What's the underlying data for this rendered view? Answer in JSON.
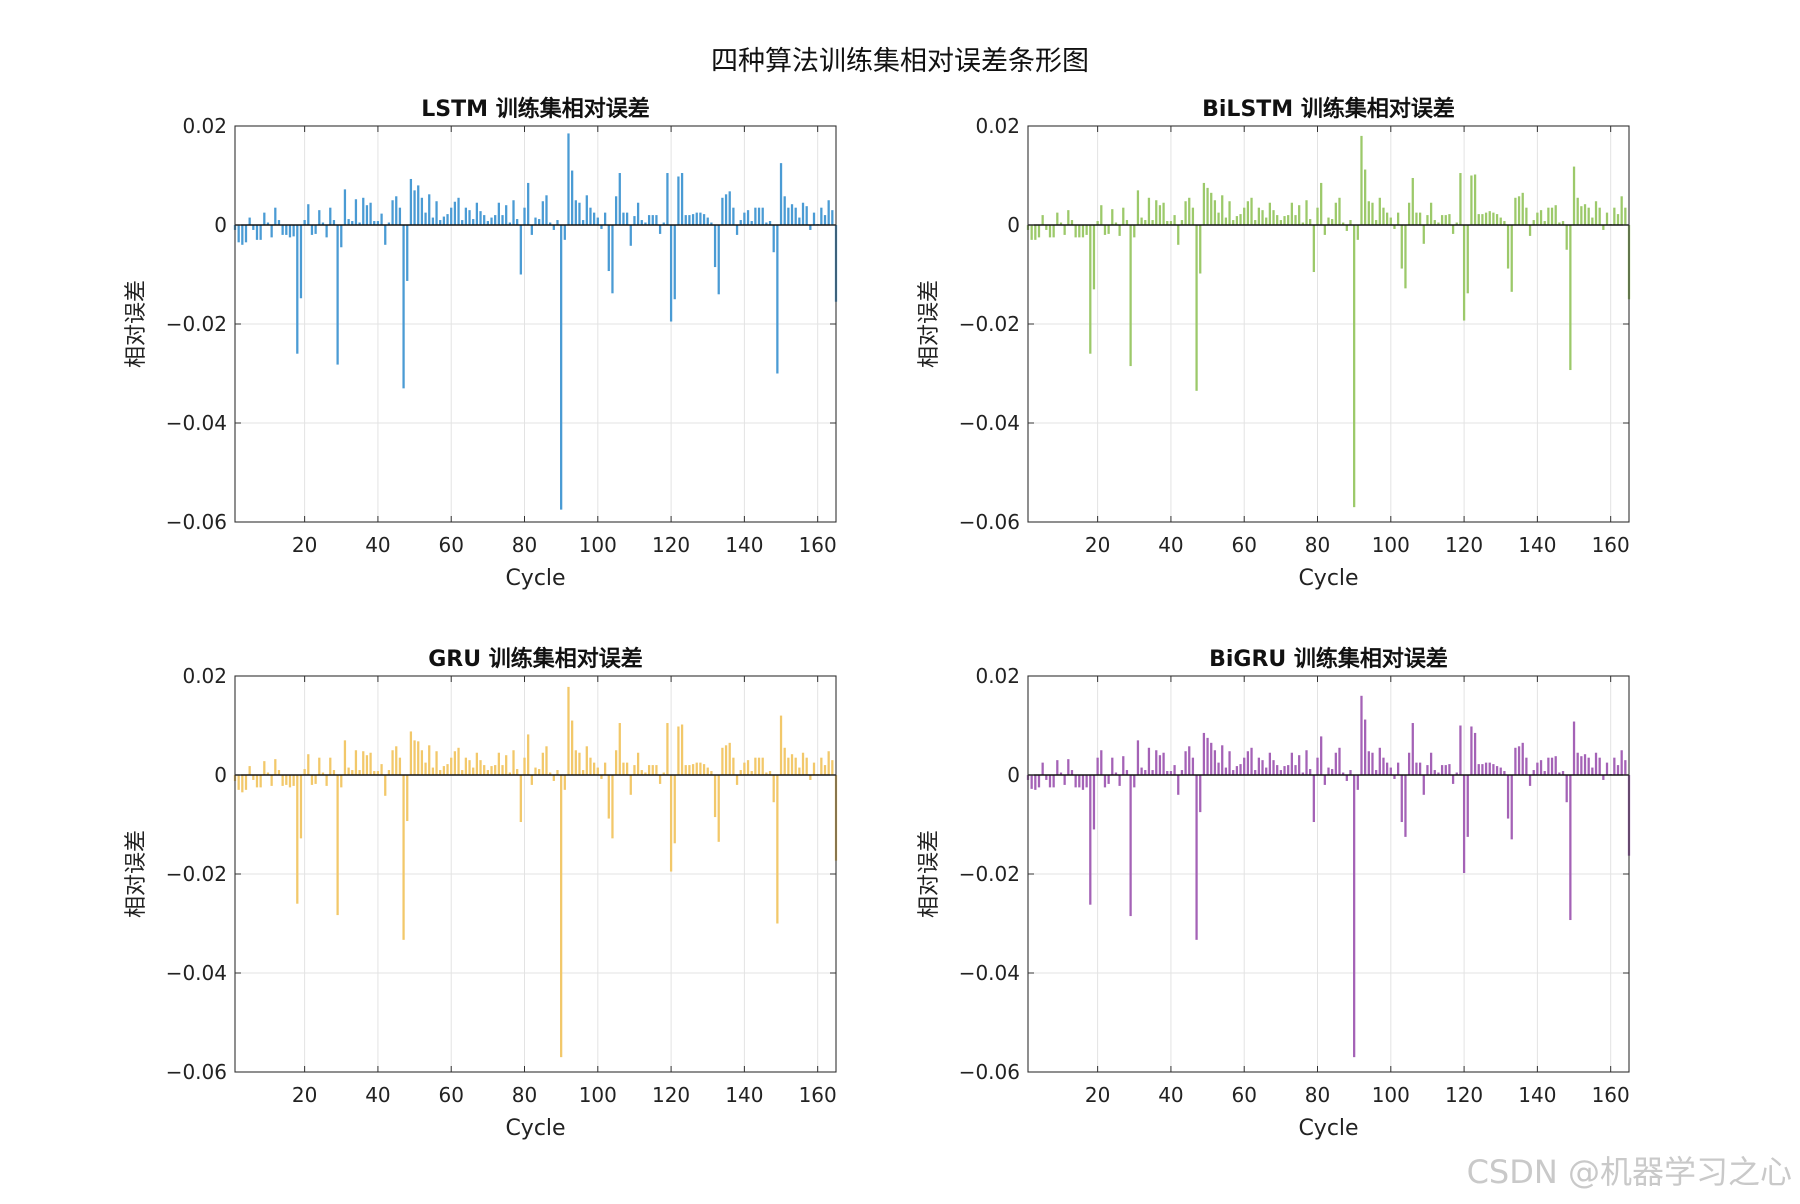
{
  "figure_title": "四种算法训练集相对误差条形图",
  "watermark": "CSDN @机器学习之心",
  "chart_data": [
    {
      "type": "bar",
      "title": "LSTM 训练集相对误差",
      "xlabel": "Cycle",
      "ylabel": "相对误差",
      "xlim": [
        1,
        165
      ],
      "ylim": [
        -0.06,
        0.02
      ],
      "xticks": [
        20,
        40,
        60,
        80,
        100,
        120,
        140,
        160
      ],
      "yticks": [
        -0.06,
        -0.04,
        -0.02,
        0,
        0.02
      ],
      "ytick_labels": [
        "−0.06",
        "−0.04",
        "−0.02",
        "0",
        "0.02"
      ],
      "grid": true,
      "color": "#4a9bd4",
      "values": [
        -0.001,
        -0.0035,
        -0.004,
        -0.0035,
        0.0015,
        -0.001,
        -0.003,
        -0.003,
        0.0025,
        0.0005,
        -0.0025,
        0.0035,
        0.001,
        -0.002,
        -0.002,
        -0.0025,
        -0.0023,
        -0.026,
        -0.0148,
        0.001,
        0.0042,
        -0.002,
        -0.0018,
        0.003,
        0.0005,
        -0.0025,
        0.0035,
        0.001,
        -0.0282,
        -0.0045,
        0.0072,
        0.0012,
        0.0008,
        0.0052,
        0.0005,
        0.0055,
        0.004,
        0.0045,
        0.0008,
        0.0008,
        0.0023,
        -0.004,
        0.0005,
        0.005,
        0.0058,
        0.0035,
        -0.033,
        -0.0113,
        0.0093,
        0.007,
        0.008,
        0.0055,
        0.0025,
        0.0062,
        0.0015,
        0.0048,
        0.001,
        0.0017,
        0.0022,
        0.0035,
        0.0047,
        0.0055,
        0.001,
        0.0035,
        0.003,
        0.0012,
        0.0045,
        0.0028,
        0.002,
        0.0008,
        0.0015,
        0.002,
        0.0045,
        0.002,
        0.004,
        0.0005,
        0.005,
        0.0012,
        -0.01,
        0.0035,
        0.0085,
        -0.002,
        0.0015,
        0.0012,
        0.0048,
        0.006,
        0.0005,
        -0.001,
        0.001,
        -0.0575,
        -0.003,
        0.0185,
        0.011,
        0.005,
        0.0045,
        0.001,
        0.006,
        0.0035,
        0.0025,
        0.0015,
        -0.0008,
        0.0025,
        -0.0093,
        -0.0138,
        0.0058,
        0.0105,
        0.0025,
        0.0025,
        -0.0042,
        0.0018,
        0.0045,
        0.001,
        0.0005,
        0.002,
        0.002,
        0.002,
        -0.0018,
        0.0005,
        0.0105,
        -0.0195,
        -0.015,
        0.0098,
        0.0105,
        0.002,
        0.002,
        0.0022,
        0.0025,
        0.0025,
        0.0022,
        0.0015,
        0.0005,
        -0.0085,
        -0.014,
        0.0055,
        0.0062,
        0.0068,
        0.0035,
        -0.002,
        0.001,
        0.0025,
        0.003,
        0.0008,
        0.0035,
        0.0035,
        0.0035,
        0.0005,
        0.0008,
        -0.0055,
        -0.03,
        0.0125,
        0.0058,
        0.0035,
        0.0042,
        0.0035,
        0.0015,
        0.0045,
        0.0038,
        -0.001,
        0.0025,
        0.0002,
        0.0035,
        0.002,
        0.005,
        0.003,
        -0.0155
      ]
    },
    {
      "type": "bar",
      "title": "BiLSTM 训练集相对误差",
      "xlabel": "Cycle",
      "ylabel": "相对误差",
      "xlim": [
        1,
        165
      ],
      "ylim": [
        -0.06,
        0.02
      ],
      "xticks": [
        20,
        40,
        60,
        80,
        100,
        120,
        140,
        160
      ],
      "yticks": [
        -0.06,
        -0.04,
        -0.02,
        0,
        0.02
      ],
      "ytick_labels": [
        "−0.06",
        "−0.04",
        "−0.02",
        "0",
        "0.02"
      ],
      "grid": true,
      "color": "#9cc96a",
      "values": [
        -0.001,
        -0.003,
        -0.003,
        -0.0025,
        0.002,
        -0.001,
        -0.0025,
        -0.0025,
        0.0025,
        0.0005,
        -0.002,
        0.003,
        0.001,
        -0.0025,
        -0.0025,
        -0.0025,
        -0.002,
        -0.026,
        -0.013,
        0.0008,
        0.004,
        -0.002,
        -0.0018,
        0.0032,
        0.0005,
        -0.0022,
        0.0035,
        0.001,
        -0.0285,
        -0.0025,
        0.007,
        0.0015,
        0.001,
        0.0055,
        0.001,
        0.005,
        0.004,
        0.0045,
        0.0008,
        0.0008,
        0.002,
        -0.004,
        0.001,
        0.0048,
        0.0055,
        0.0035,
        -0.0335,
        -0.0098,
        0.0085,
        0.0075,
        0.0065,
        0.005,
        0.0025,
        0.006,
        0.0015,
        0.0048,
        0.001,
        0.0018,
        0.0022,
        0.0035,
        0.0048,
        0.0055,
        0.001,
        0.0035,
        0.003,
        0.0015,
        0.0045,
        0.003,
        0.002,
        0.001,
        0.0018,
        0.002,
        0.0045,
        0.002,
        0.004,
        0.0005,
        0.005,
        0.0012,
        -0.0095,
        0.0035,
        0.0085,
        -0.002,
        0.0015,
        0.0012,
        0.0045,
        0.0055,
        0.0005,
        -0.0012,
        0.001,
        -0.057,
        -0.003,
        0.018,
        0.0112,
        0.0048,
        0.0045,
        0.001,
        0.0055,
        0.0035,
        0.0025,
        0.0015,
        -0.0008,
        0.0025,
        -0.0088,
        -0.0128,
        0.0045,
        0.0095,
        0.0025,
        0.0025,
        -0.0038,
        0.002,
        0.0045,
        0.001,
        0.0005,
        0.002,
        0.002,
        0.0022,
        -0.0018,
        0.0005,
        0.0105,
        -0.0193,
        -0.0138,
        0.01,
        0.0102,
        0.0022,
        0.0022,
        0.0025,
        0.0028,
        0.0025,
        0.0022,
        0.0015,
        0.0008,
        -0.0088,
        -0.0135,
        0.0055,
        0.0058,
        0.0065,
        0.0035,
        -0.0022,
        0.001,
        0.0025,
        0.003,
        0.0008,
        0.0035,
        0.0035,
        0.004,
        0.0005,
        0.0008,
        -0.005,
        -0.0293,
        0.0118,
        0.0055,
        0.0038,
        0.0042,
        0.0035,
        0.0015,
        0.0048,
        0.0035,
        -0.001,
        0.0025,
        0.0002,
        0.0035,
        0.0022,
        0.0058,
        0.0035,
        -0.015
      ]
    },
    {
      "type": "bar",
      "title": "GRU 训练集相对误差",
      "xlabel": "Cycle",
      "ylabel": "相对误差",
      "xlim": [
        1,
        165
      ],
      "ylim": [
        -0.06,
        0.02
      ],
      "xticks": [
        20,
        40,
        60,
        80,
        100,
        120,
        140,
        160
      ],
      "yticks": [
        -0.06,
        -0.04,
        -0.02,
        0,
        0.02
      ],
      "ytick_labels": [
        "−0.06",
        "−0.04",
        "−0.02",
        "0",
        "0.02"
      ],
      "grid": true,
      "color": "#f2c86a",
      "values": [
        -0.0012,
        -0.003,
        -0.0035,
        -0.003,
        0.0018,
        -0.001,
        -0.0025,
        -0.0025,
        0.0028,
        0.0005,
        -0.0022,
        0.0032,
        0.001,
        -0.0022,
        -0.002,
        -0.0025,
        -0.0022,
        -0.026,
        -0.0128,
        0.0012,
        0.0042,
        -0.002,
        -0.0018,
        0.0035,
        0.0005,
        -0.0022,
        0.0035,
        0.001,
        -0.0283,
        -0.0025,
        0.007,
        0.0015,
        0.001,
        0.005,
        0.001,
        0.0048,
        0.004,
        0.0045,
        0.0008,
        0.0008,
        0.0022,
        -0.0042,
        0.001,
        0.005,
        0.0058,
        0.0035,
        -0.0333,
        -0.0093,
        0.0088,
        0.007,
        0.0068,
        0.005,
        0.0025,
        0.006,
        0.0015,
        0.0048,
        0.001,
        0.0018,
        0.0022,
        0.0035,
        0.0048,
        0.0055,
        0.001,
        0.0035,
        0.003,
        0.0015,
        0.0045,
        0.003,
        0.002,
        0.001,
        0.0018,
        0.002,
        0.0045,
        0.002,
        0.004,
        0.0005,
        0.005,
        0.0012,
        -0.0095,
        0.0035,
        0.0082,
        -0.002,
        0.0015,
        0.0012,
        0.0045,
        0.0058,
        0.0005,
        -0.0012,
        0.001,
        -0.057,
        -0.003,
        0.0178,
        0.011,
        0.005,
        0.0045,
        0.001,
        0.0058,
        0.0035,
        0.0025,
        0.0015,
        -0.0008,
        0.0025,
        -0.0088,
        -0.0128,
        0.005,
        0.0105,
        0.0025,
        0.0025,
        -0.004,
        0.002,
        0.0045,
        0.001,
        0.0005,
        0.002,
        0.002,
        0.002,
        -0.0018,
        0.0005,
        0.0105,
        -0.0195,
        -0.0138,
        0.0098,
        0.0102,
        0.002,
        0.002,
        0.0022,
        0.0025,
        0.0025,
        0.0022,
        0.0015,
        0.0008,
        -0.0085,
        -0.0135,
        0.0055,
        0.006,
        0.0065,
        0.0035,
        -0.002,
        0.001,
        0.0025,
        0.003,
        0.0008,
        0.0035,
        0.0035,
        0.0035,
        0.0005,
        0.0008,
        -0.0055,
        -0.03,
        0.012,
        0.0055,
        0.0035,
        0.0042,
        0.0035,
        0.0015,
        0.0045,
        0.0035,
        -0.001,
        0.0025,
        0.0002,
        0.0035,
        0.002,
        0.0048,
        0.003,
        -0.0173
      ]
    },
    {
      "type": "bar",
      "title": "BiGRU 训练集相对误差",
      "xlabel": "Cycle",
      "ylabel": "相对误差",
      "xlim": [
        1,
        165
      ],
      "ylim": [
        -0.06,
        0.02
      ],
      "xticks": [
        20,
        40,
        60,
        80,
        100,
        120,
        140,
        160
      ],
      "yticks": [
        -0.06,
        -0.04,
        -0.02,
        0,
        0.02
      ],
      "ytick_labels": [
        "−0.06",
        "−0.04",
        "−0.02",
        "0",
        "0.02"
      ],
      "grid": true,
      "color": "#a462b6",
      "values": [
        -0.001,
        -0.0028,
        -0.003,
        -0.0025,
        0.0025,
        -0.001,
        -0.0025,
        -0.0025,
        0.003,
        0.0005,
        -0.002,
        0.0032,
        0.001,
        -0.0025,
        -0.0025,
        -0.003,
        -0.0025,
        -0.0262,
        -0.011,
        0.0035,
        0.005,
        -0.0025,
        -0.0018,
        0.0035,
        0.0005,
        -0.0022,
        0.0038,
        0.001,
        -0.0285,
        -0.0025,
        0.007,
        0.0015,
        0.001,
        0.0055,
        0.001,
        0.005,
        0.004,
        0.0045,
        0.0008,
        0.0008,
        0.002,
        -0.004,
        0.001,
        0.0048,
        0.0058,
        0.0035,
        -0.0333,
        -0.0075,
        0.0085,
        0.0075,
        0.0065,
        0.005,
        0.0025,
        0.006,
        0.0015,
        0.0048,
        0.001,
        0.0018,
        0.0022,
        0.0035,
        0.0048,
        0.0055,
        0.001,
        0.0035,
        0.003,
        0.0015,
        0.0045,
        0.003,
        0.002,
        0.001,
        0.0018,
        0.002,
        0.0045,
        0.002,
        0.004,
        0.0005,
        0.005,
        0.0012,
        -0.0095,
        0.0035,
        0.0078,
        -0.002,
        0.0015,
        0.0012,
        0.0045,
        0.0055,
        0.0005,
        -0.0012,
        0.001,
        -0.057,
        -0.003,
        0.016,
        0.0112,
        0.0048,
        0.0045,
        0.001,
        0.0055,
        0.0035,
        0.0025,
        0.0015,
        -0.0008,
        0.0025,
        -0.0095,
        -0.0125,
        0.0045,
        0.0105,
        0.0025,
        0.0025,
        -0.004,
        0.002,
        0.0045,
        0.001,
        0.0005,
        0.002,
        0.002,
        0.0022,
        -0.0018,
        0.0005,
        0.01,
        -0.0198,
        -0.0125,
        0.0098,
        0.0085,
        0.0022,
        0.0022,
        0.0025,
        0.0025,
        0.0022,
        0.0018,
        0.0015,
        0.0008,
        -0.0088,
        -0.013,
        0.0055,
        0.0058,
        0.0065,
        0.0035,
        -0.0022,
        0.001,
        0.0025,
        0.003,
        0.0008,
        0.0035,
        0.0035,
        0.0038,
        0.0005,
        0.0008,
        -0.0055,
        -0.0293,
        0.0108,
        0.0045,
        0.0038,
        0.0042,
        0.0035,
        0.0015,
        0.0045,
        0.0035,
        -0.001,
        0.0025,
        0.0002,
        0.0035,
        0.002,
        0.005,
        0.003,
        -0.0163
      ]
    }
  ]
}
